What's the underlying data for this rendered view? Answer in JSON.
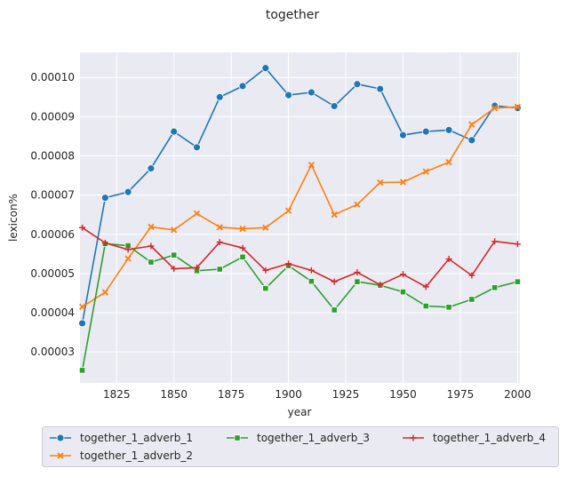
{
  "chart_data": {
    "type": "line",
    "title": "together",
    "xlabel": "year",
    "ylabel": "lexicon%",
    "xlim": [
      1809,
      2001
    ],
    "ylim": [
      2.21e-05,
      0.0001064
    ],
    "xticks": [
      "1825",
      "1850",
      "1875",
      "1900",
      "1925",
      "1950",
      "1975",
      "2000"
    ],
    "yticks": [
      "0.00003",
      "0.00004",
      "0.00005",
      "0.00006",
      "0.00007",
      "0.00008",
      "0.00009",
      "0.00010"
    ],
    "grid": true,
    "legend_position": "bottom",
    "x": [
      1810,
      1820,
      1830,
      1840,
      1850,
      1860,
      1870,
      1880,
      1890,
      1900,
      1910,
      1920,
      1930,
      1940,
      1950,
      1960,
      1970,
      1980,
      1990,
      2000
    ],
    "series": [
      {
        "name": "together_1_adverb_1",
        "color": "#1f77b4",
        "marker": "circle",
        "values": [
          3.73e-05,
          6.93e-05,
          7.08e-05,
          7.68e-05,
          8.62e-05,
          8.22e-05,
          9.5e-05,
          9.78e-05,
          0.0001024,
          9.55e-05,
          9.62e-05,
          9.27e-05,
          9.83e-05,
          9.71e-05,
          8.53e-05,
          8.62e-05,
          8.66e-05,
          8.4e-05,
          9.28e-05,
          9.22e-05
        ]
      },
      {
        "name": "together_1_adverb_2",
        "color": "#ff7f0e",
        "marker": "x",
        "values": [
          4.15e-05,
          4.52e-05,
          5.38e-05,
          6.19e-05,
          6.11e-05,
          6.53e-05,
          6.18e-05,
          6.14e-05,
          6.17e-05,
          6.6e-05,
          7.77e-05,
          6.5e-05,
          6.76e-05,
          7.32e-05,
          7.33e-05,
          7.6e-05,
          7.84e-05,
          8.8e-05,
          9.22e-05,
          9.25e-05
        ]
      },
      {
        "name": "together_1_adverb_3",
        "color": "#2ca02c",
        "marker": "square",
        "values": [
          2.53e-05,
          5.76e-05,
          5.71e-05,
          5.29e-05,
          5.47e-05,
          5.07e-05,
          5.11e-05,
          5.42e-05,
          4.62e-05,
          5.2e-05,
          4.8e-05,
          4.07e-05,
          4.79e-05,
          4.7e-05,
          4.53e-05,
          4.17e-05,
          4.14e-05,
          4.34e-05,
          4.64e-05,
          4.79e-05
        ]
      },
      {
        "name": "together_1_adverb_4",
        "color": "#d62728",
        "marker": "plus",
        "values": [
          6.17e-05,
          5.78e-05,
          5.61e-05,
          5.7e-05,
          5.12e-05,
          5.15e-05,
          5.8e-05,
          5.65e-05,
          5.08e-05,
          5.25e-05,
          5.08e-05,
          4.79e-05,
          5.03e-05,
          4.71e-05,
          4.98e-05,
          4.66e-05,
          5.37e-05,
          4.95e-05,
          5.82e-05,
          5.75e-05
        ]
      }
    ]
  }
}
